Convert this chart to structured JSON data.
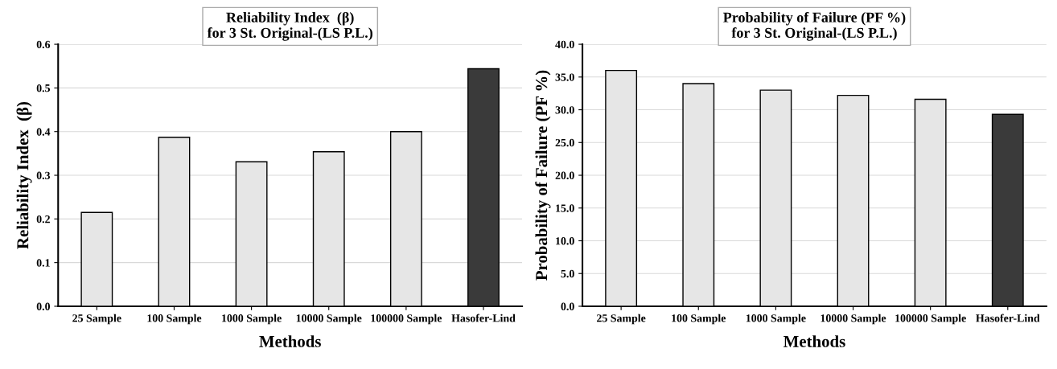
{
  "chart_data": [
    {
      "type": "bar",
      "title": "Reliability Index  (β)\nfor 3 St. Original-(LS P.L.)",
      "xlabel": "Methods",
      "ylabel": "Reliability Index  (β)",
      "categories": [
        "25 Sample",
        "100 Sample",
        "1000 Sample",
        "10000 Sample",
        "100000 Sample",
        "Hasofer-Lind"
      ],
      "values": [
        0.215,
        0.387,
        0.331,
        0.354,
        0.4,
        0.544
      ],
      "colors": [
        "#e6e6e6",
        "#e6e6e6",
        "#e6e6e6",
        "#e6e6e6",
        "#e6e6e6",
        "#3a3a3a"
      ],
      "ylim": [
        0,
        0.6
      ],
      "yticks": [
        {
          "value": 0,
          "label": "0.0"
        },
        0.1,
        0.2,
        0.3,
        0.4,
        0.5,
        0.6
      ],
      "grid": "y"
    },
    {
      "type": "bar",
      "title": "Probability of Failure (PF %)\nfor 3 St. Original-(LS P.L.)",
      "xlabel": "Methods",
      "ylabel": "Probability of Failure (PF %)",
      "categories": [
        "25 Sample",
        "100 Sample",
        "1000 Sample",
        "10000 Sample",
        "100000 Sample",
        "Hasofer-Lind"
      ],
      "values": [
        36.0,
        34.0,
        33.0,
        32.2,
        31.6,
        29.3
      ],
      "colors": [
        "#e6e6e6",
        "#e6e6e6",
        "#e6e6e6",
        "#e6e6e6",
        "#e6e6e6",
        "#3a3a3a"
      ],
      "ylim": [
        0,
        40
      ],
      "yticks": [
        {
          "value": 0,
          "label": "0.0"
        },
        {
          "value": 5,
          "label": "5.0"
        },
        {
          "value": 10,
          "label": "10.0"
        },
        {
          "value": 15,
          "label": "15.0"
        },
        {
          "value": 20,
          "label": "20.0"
        },
        {
          "value": 25,
          "label": "25.0"
        },
        {
          "value": 30,
          "label": "30.0"
        },
        {
          "value": 35,
          "label": "35.0"
        },
        {
          "value": 40,
          "label": "40.0"
        }
      ],
      "grid": "y"
    }
  ]
}
